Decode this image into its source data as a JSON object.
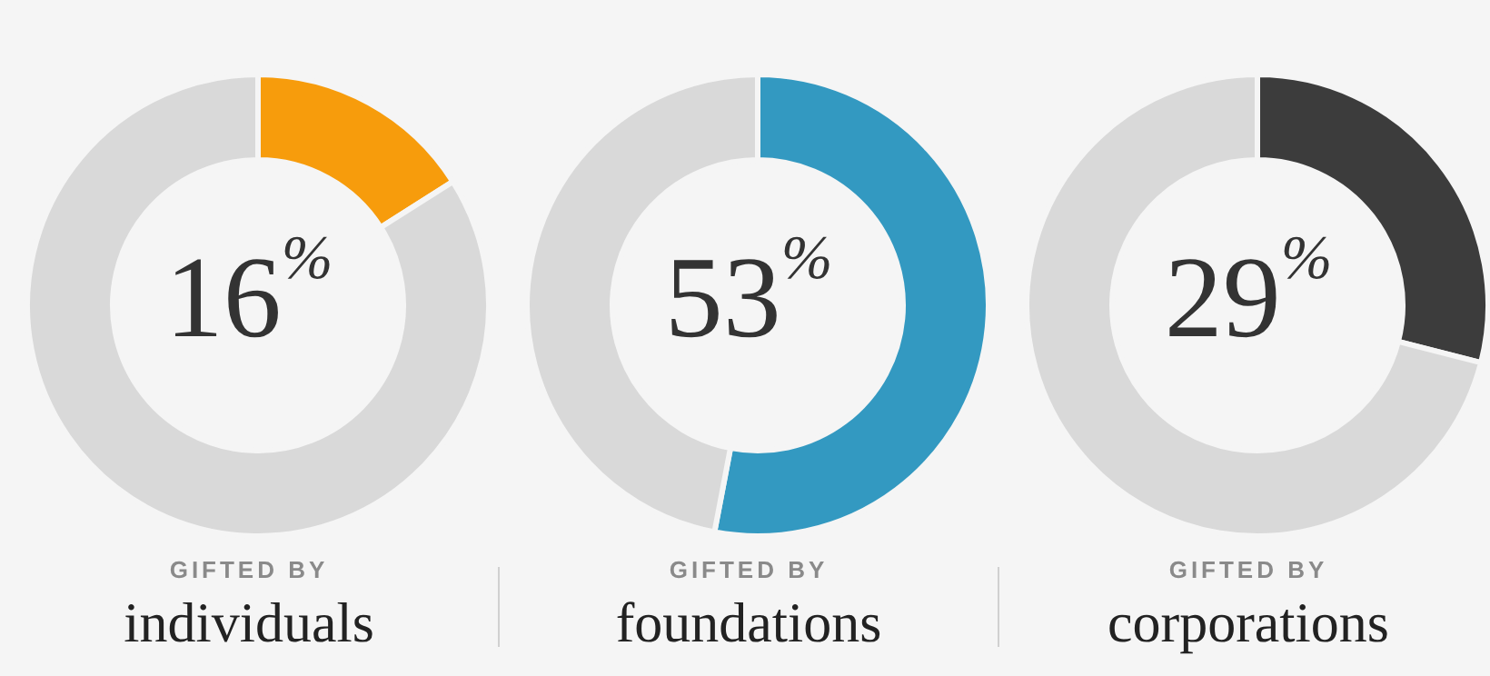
{
  "chart_data": [
    {
      "type": "donut",
      "subtitle": "GIFTED BY",
      "title": "individuals",
      "categories": [
        null,
        null
      ],
      "values": [
        16,
        84
      ],
      "colors": [
        "#f79c0c",
        "#d9d9d9"
      ],
      "annotations": [
        "16$^{%}$"
      ]
    },
    {
      "type": "donut",
      "subtitle": "GIFTED BY",
      "title": "foundations",
      "categories": [
        null,
        null
      ],
      "values": [
        53,
        47
      ],
      "colors": [
        "#3399c1",
        "#d9d9d9"
      ],
      "annotations": [
        "53$^{%}$"
      ]
    },
    {
      "type": "donut",
      "subtitle": "GIFTED BY",
      "title": "corporations",
      "categories": [
        null,
        null
      ],
      "values": [
        29,
        71
      ],
      "colors": [
        "#3c3c3c",
        "#d9d9d9"
      ],
      "annotations": [
        "29$^{%}$"
      ]
    }
  ]
}
